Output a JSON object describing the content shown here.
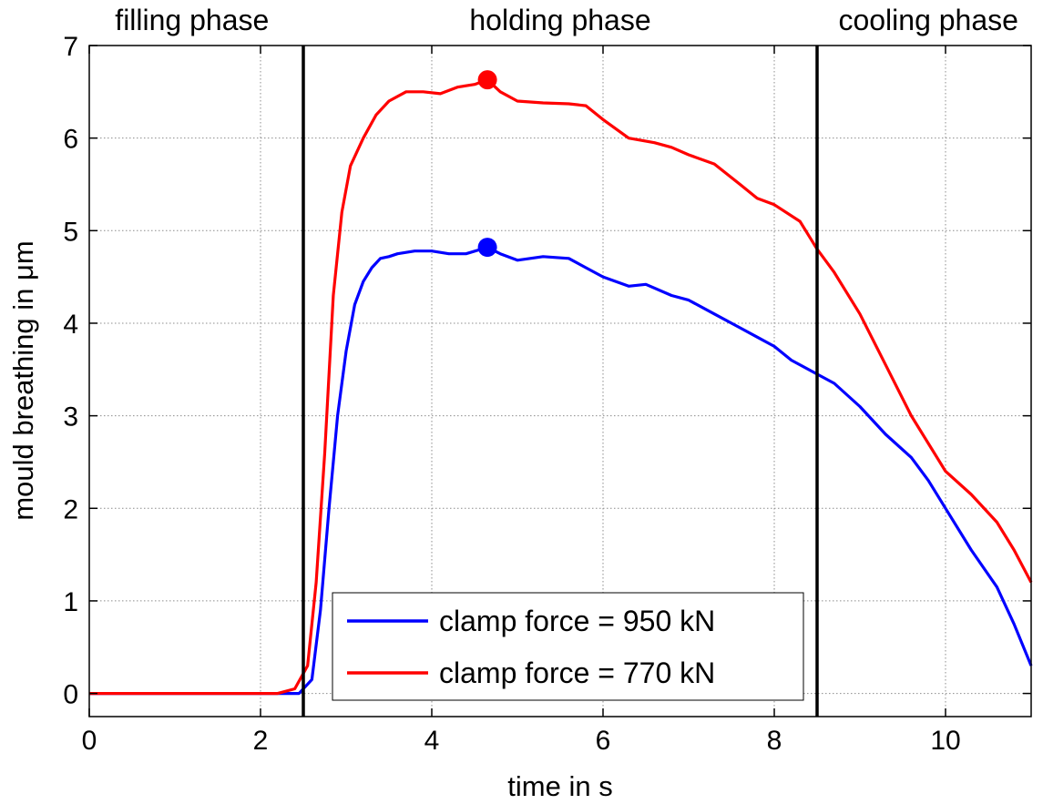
{
  "chart_data": {
    "type": "line",
    "xlabel": "time in s",
    "ylabel": "mould breathing in μm",
    "xlim": [
      0,
      11
    ],
    "ylim": [
      -0.25,
      7
    ],
    "xticks": [
      0,
      2,
      4,
      6,
      8,
      10
    ],
    "xtick_labels": [
      "0",
      "2",
      "4",
      "6",
      "8",
      "10"
    ],
    "yticks": [
      0,
      1,
      2,
      3,
      4,
      5,
      6,
      7
    ],
    "ytick_labels": [
      "0",
      "1",
      "2",
      "3",
      "4",
      "5",
      "6",
      "7"
    ],
    "grid": true,
    "legend_position": "bottom-center",
    "phase_boundaries": [
      2.5,
      8.5
    ],
    "phases": [
      {
        "label": "filling phase",
        "x_center": 1.2
      },
      {
        "label": "holding phase",
        "x_center": 5.5
      },
      {
        "label": "cooling phase",
        "x_center": 9.8
      }
    ],
    "series": [
      {
        "name": "clamp force = 950 kN",
        "color": "#0000ff",
        "x": [
          0,
          2.2,
          2.45,
          2.6,
          2.7,
          2.8,
          2.9,
          3.0,
          3.1,
          3.2,
          3.3,
          3.4,
          3.5,
          3.6,
          3.8,
          4.0,
          4.2,
          4.4,
          4.65,
          4.8,
          5.0,
          5.3,
          5.6,
          5.8,
          6.0,
          6.3,
          6.5,
          6.8,
          7.0,
          7.3,
          7.6,
          7.8,
          8.0,
          8.2,
          8.5,
          8.7,
          9.0,
          9.3,
          9.6,
          9.8,
          10.0,
          10.3,
          10.6,
          10.8,
          11.0
        ],
        "y": [
          0,
          0,
          0,
          0.15,
          0.9,
          2.0,
          3.0,
          3.7,
          4.2,
          4.45,
          4.6,
          4.7,
          4.72,
          4.75,
          4.78,
          4.78,
          4.75,
          4.75,
          4.82,
          4.75,
          4.68,
          4.72,
          4.7,
          4.6,
          4.5,
          4.4,
          4.42,
          4.3,
          4.25,
          4.1,
          3.95,
          3.85,
          3.75,
          3.6,
          3.45,
          3.35,
          3.1,
          2.8,
          2.55,
          2.3,
          2.0,
          1.55,
          1.15,
          0.75,
          0.3
        ]
      },
      {
        "name": "clamp force = 770 kN",
        "color": "#ff0000",
        "x": [
          0,
          2.2,
          2.4,
          2.55,
          2.65,
          2.75,
          2.85,
          2.95,
          3.05,
          3.2,
          3.35,
          3.5,
          3.7,
          3.9,
          4.1,
          4.3,
          4.5,
          4.65,
          4.8,
          5.0,
          5.3,
          5.6,
          5.8,
          6.0,
          6.3,
          6.6,
          6.8,
          7.0,
          7.3,
          7.6,
          7.8,
          8.0,
          8.3,
          8.5,
          8.7,
          9.0,
          9.3,
          9.6,
          9.8,
          10.0,
          10.3,
          10.6,
          10.8,
          11.0
        ],
        "y": [
          0,
          0,
          0.05,
          0.3,
          1.2,
          2.6,
          4.3,
          5.2,
          5.7,
          6.0,
          6.25,
          6.4,
          6.5,
          6.5,
          6.48,
          6.55,
          6.58,
          6.63,
          6.5,
          6.4,
          6.38,
          6.37,
          6.35,
          6.2,
          6.0,
          5.95,
          5.9,
          5.82,
          5.72,
          5.5,
          5.35,
          5.28,
          5.1,
          4.8,
          4.55,
          4.1,
          3.55,
          3.0,
          2.7,
          2.4,
          2.15,
          1.85,
          1.55,
          1.2
        ]
      }
    ],
    "markers": [
      {
        "series": "clamp force = 950 kN",
        "x": 4.65,
        "y": 4.82,
        "color": "#0000ff"
      },
      {
        "series": "clamp force = 770 kN",
        "x": 4.65,
        "y": 6.63,
        "color": "#ff0000"
      }
    ]
  }
}
